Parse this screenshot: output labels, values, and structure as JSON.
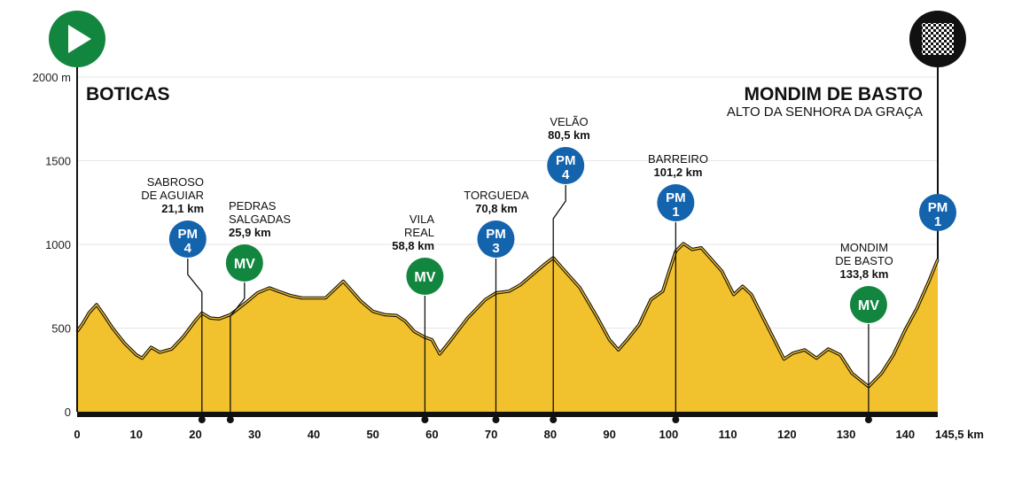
{
  "chart_data": {
    "type": "area",
    "title": "",
    "xlabel": "",
    "ylabel": "",
    "x_unit_label": "km",
    "xlim": [
      0,
      145.5
    ],
    "ylim": [
      0,
      2000
    ],
    "x_ticks": [
      0,
      10,
      20,
      30,
      40,
      50,
      60,
      70,
      80,
      90,
      100,
      110,
      120,
      130,
      140
    ],
    "x_end_label": "145,5 km",
    "y_ticks": [
      {
        "value": 0,
        "label": "0"
      },
      {
        "value": 500,
        "label": "500"
      },
      {
        "value": 1000,
        "label": "1000"
      },
      {
        "value": 1500,
        "label": "1500"
      },
      {
        "value": 2000,
        "label": "2000 m"
      }
    ],
    "grid": true,
    "fill_color": "#f2c12e",
    "start": {
      "name": "BOTICAS"
    },
    "finish": {
      "name": "MONDIM DE BASTO",
      "subtitle": "ALTO DA SENHORA DA GRAÇA"
    },
    "profile": [
      {
        "x": 0,
        "y": 480
      },
      {
        "x": 1,
        "y": 530
      },
      {
        "x": 2,
        "y": 590
      },
      {
        "x": 3.3,
        "y": 640
      },
      {
        "x": 4.5,
        "y": 580
      },
      {
        "x": 6,
        "y": 500
      },
      {
        "x": 8,
        "y": 410
      },
      {
        "x": 10,
        "y": 340
      },
      {
        "x": 11,
        "y": 320
      },
      {
        "x": 12.5,
        "y": 385
      },
      {
        "x": 14,
        "y": 355
      },
      {
        "x": 16,
        "y": 375
      },
      {
        "x": 18,
        "y": 450
      },
      {
        "x": 20,
        "y": 545
      },
      {
        "x": 21.1,
        "y": 590
      },
      {
        "x": 22.5,
        "y": 560
      },
      {
        "x": 24,
        "y": 555
      },
      {
        "x": 25.9,
        "y": 580
      },
      {
        "x": 27,
        "y": 610
      },
      {
        "x": 29,
        "y": 665
      },
      {
        "x": 30.5,
        "y": 710
      },
      {
        "x": 32.5,
        "y": 740
      },
      {
        "x": 34,
        "y": 720
      },
      {
        "x": 36,
        "y": 695
      },
      {
        "x": 38,
        "y": 680
      },
      {
        "x": 40,
        "y": 680
      },
      {
        "x": 42,
        "y": 680
      },
      {
        "x": 43.5,
        "y": 730
      },
      {
        "x": 45,
        "y": 780
      },
      {
        "x": 46.5,
        "y": 720
      },
      {
        "x": 48,
        "y": 660
      },
      {
        "x": 50,
        "y": 600
      },
      {
        "x": 52,
        "y": 580
      },
      {
        "x": 54,
        "y": 575
      },
      {
        "x": 55.5,
        "y": 540
      },
      {
        "x": 57,
        "y": 480
      },
      {
        "x": 58.8,
        "y": 445
      },
      {
        "x": 60,
        "y": 430
      },
      {
        "x": 61.3,
        "y": 345
      },
      {
        "x": 63,
        "y": 420
      },
      {
        "x": 66,
        "y": 560
      },
      {
        "x": 69,
        "y": 670
      },
      {
        "x": 70.8,
        "y": 710
      },
      {
        "x": 73,
        "y": 720
      },
      {
        "x": 75,
        "y": 760
      },
      {
        "x": 77,
        "y": 820
      },
      {
        "x": 79,
        "y": 880
      },
      {
        "x": 80.5,
        "y": 920
      },
      {
        "x": 82,
        "y": 860
      },
      {
        "x": 85,
        "y": 740
      },
      {
        "x": 88,
        "y": 560
      },
      {
        "x": 90,
        "y": 430
      },
      {
        "x": 91.5,
        "y": 370
      },
      {
        "x": 93,
        "y": 430
      },
      {
        "x": 95,
        "y": 520
      },
      {
        "x": 97,
        "y": 670
      },
      {
        "x": 99,
        "y": 720
      },
      {
        "x": 100,
        "y": 830
      },
      {
        "x": 101.2,
        "y": 960
      },
      {
        "x": 102.5,
        "y": 1005
      },
      {
        "x": 104,
        "y": 970
      },
      {
        "x": 105.5,
        "y": 980
      },
      {
        "x": 107,
        "y": 920
      },
      {
        "x": 109,
        "y": 840
      },
      {
        "x": 111,
        "y": 700
      },
      {
        "x": 112.5,
        "y": 750
      },
      {
        "x": 114,
        "y": 700
      },
      {
        "x": 116,
        "y": 560
      },
      {
        "x": 118,
        "y": 420
      },
      {
        "x": 119.5,
        "y": 315
      },
      {
        "x": 121,
        "y": 350
      },
      {
        "x": 123,
        "y": 370
      },
      {
        "x": 125,
        "y": 320
      },
      {
        "x": 127,
        "y": 375
      },
      {
        "x": 129,
        "y": 340
      },
      {
        "x": 131,
        "y": 230
      },
      {
        "x": 133.8,
        "y": 150
      },
      {
        "x": 136,
        "y": 230
      },
      {
        "x": 138,
        "y": 340
      },
      {
        "x": 140,
        "y": 490
      },
      {
        "x": 142,
        "y": 620
      },
      {
        "x": 144,
        "y": 780
      },
      {
        "x": 145.5,
        "y": 910
      }
    ],
    "climbs": [
      {
        "km": 21.1,
        "type": "PM",
        "category": "4",
        "color": "#1463ad",
        "label": [
          "SABROSO",
          "DE AGUIAR"
        ],
        "km_label": "21,1 km"
      },
      {
        "km": 25.9,
        "type": "MV",
        "category": "",
        "color": "#12863f",
        "label": [
          "PEDRAS",
          "SALGADAS"
        ],
        "km_label": "25,9 km"
      },
      {
        "km": 58.8,
        "type": "MV",
        "category": "",
        "color": "#12863f",
        "label": [
          "VILA",
          "REAL"
        ],
        "km_label": "58,8 km"
      },
      {
        "km": 70.8,
        "type": "PM",
        "category": "3",
        "color": "#1463ad",
        "label": [
          "TORGUEDA"
        ],
        "km_label": "70,8 km"
      },
      {
        "km": 80.5,
        "type": "PM",
        "category": "4",
        "color": "#1463ad",
        "label": [
          "VELÃO"
        ],
        "km_label": "80,5 km"
      },
      {
        "km": 101.2,
        "type": "PM",
        "category": "1",
        "color": "#1463ad",
        "label": [
          "BARREIRO"
        ],
        "km_label": "101,2 km"
      },
      {
        "km": 133.8,
        "type": "MV",
        "category": "",
        "color": "#12863f",
        "label": [
          "MONDIM",
          "DE BASTO"
        ],
        "km_label": "133,8 km"
      },
      {
        "km": 145.5,
        "type": "PM",
        "category": "1",
        "color": "#1463ad",
        "label": [],
        "km_label": ""
      }
    ],
    "start_icon": "play-icon",
    "finish_icon": "checkered-flag-icon",
    "start_icon_color": "#12863f",
    "finish_icon_color": "#111111"
  }
}
